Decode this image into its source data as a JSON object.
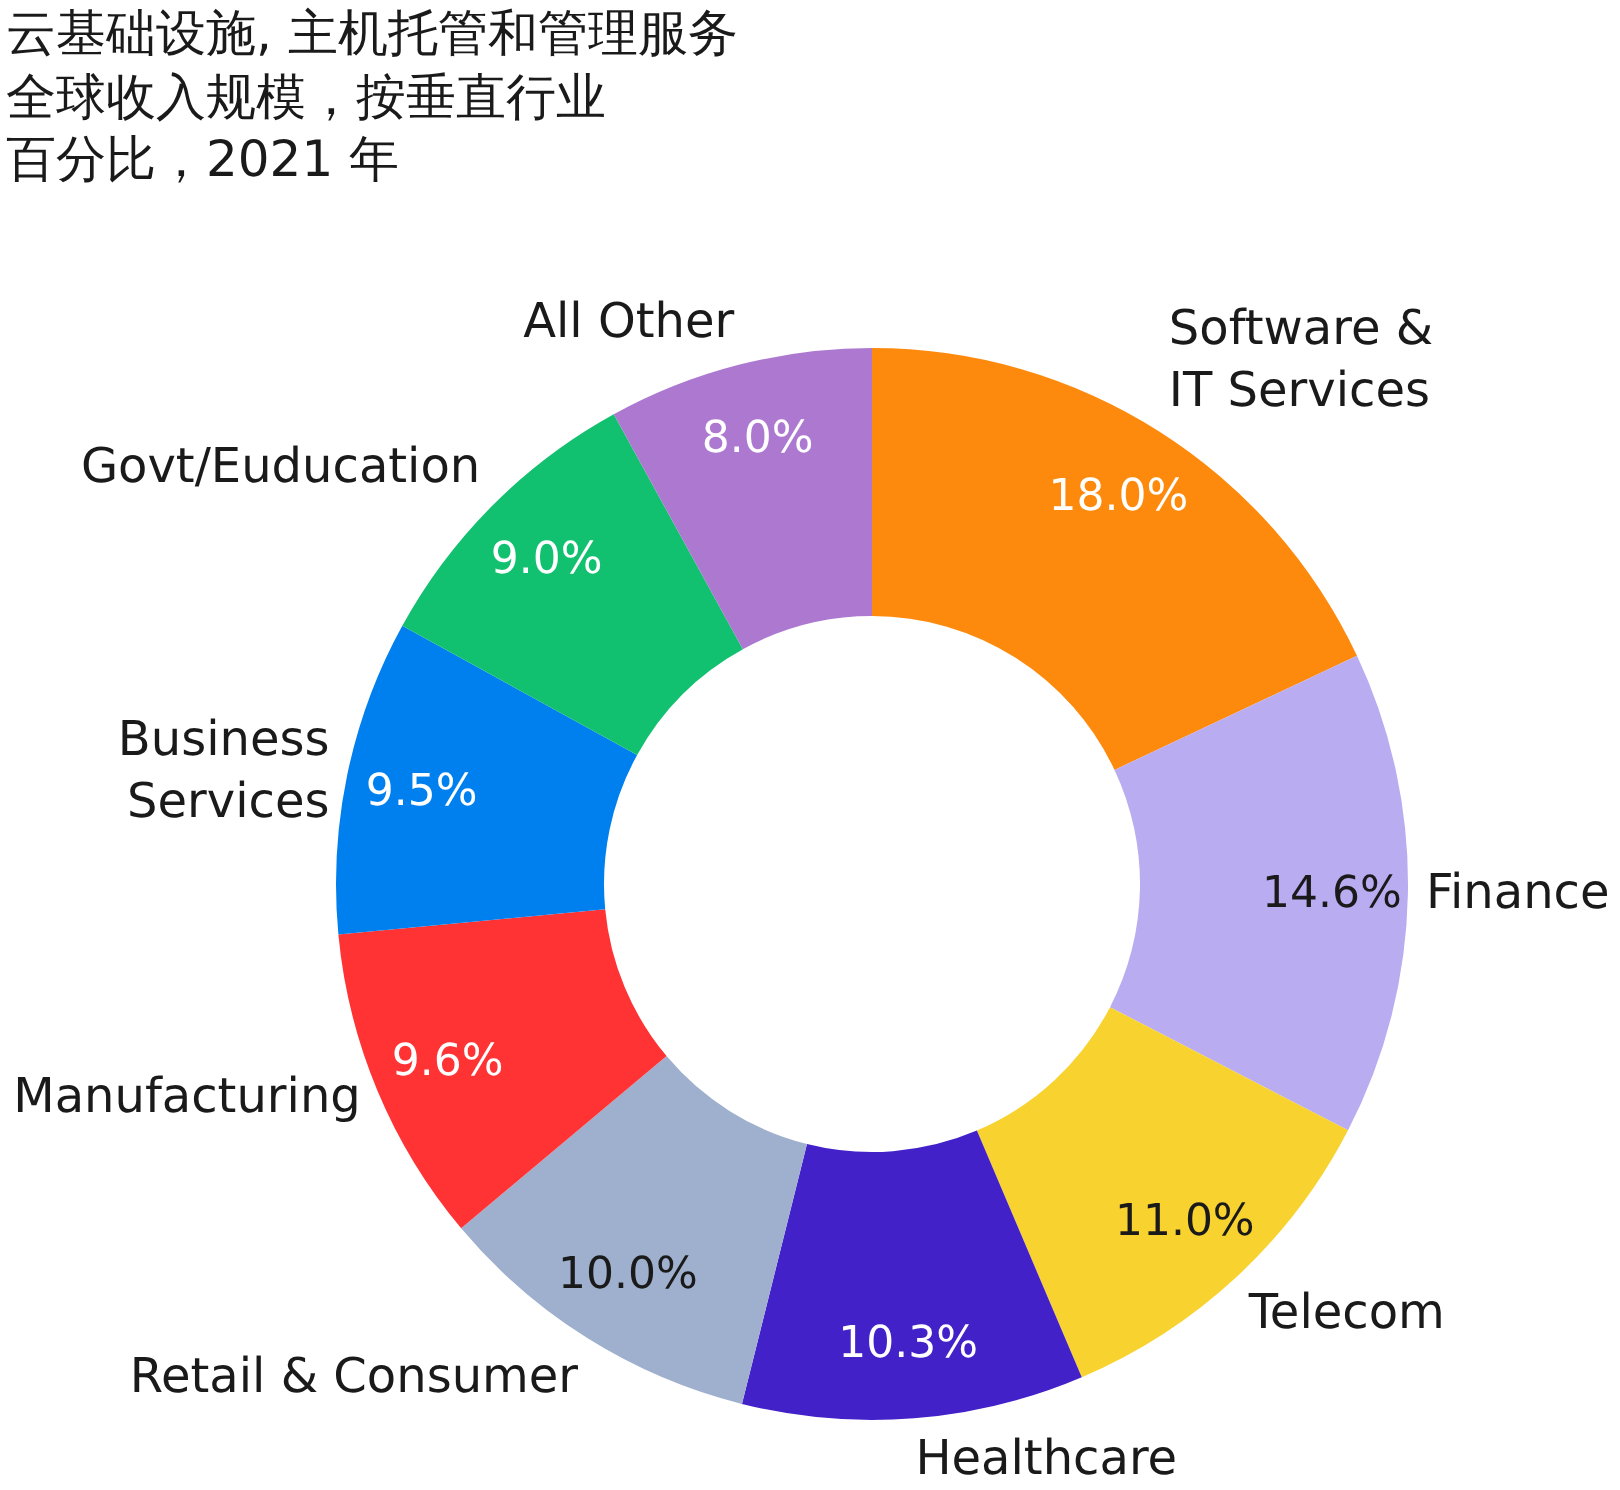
{
  "chart_data": {
    "type": "donut",
    "title": "云基础设施, 主机托管和管理服务",
    "subtitle": "全球收入规模，按垂直行业",
    "annotations": [
      "百分比，2021 年"
    ],
    "categories": [
      "Software & IT Services",
      "Finance",
      "Telecom",
      "Healthcare",
      "Retail & Consumer",
      "Manufacturing",
      "Business Services",
      "Govt/Euducation",
      "All Other"
    ],
    "values": [
      18.0,
      14.6,
      11.0,
      10.3,
      10.0,
      9.6,
      9.5,
      9.0,
      8.0
    ],
    "colors": [
      "#fd8a0c",
      "#b9acf0",
      "#f8d22e",
      "#4321c9",
      "#9eb0cd",
      "#ff3234",
      "#0080ef",
      "#12c170",
      "#ac78d0"
    ],
    "value_labels": [
      "18.0%",
      "14.6%",
      "11.0%",
      "10.3%",
      "10.0%",
      "9.6%",
      "9.5%",
      "9.0%",
      "8.0%"
    ]
  }
}
